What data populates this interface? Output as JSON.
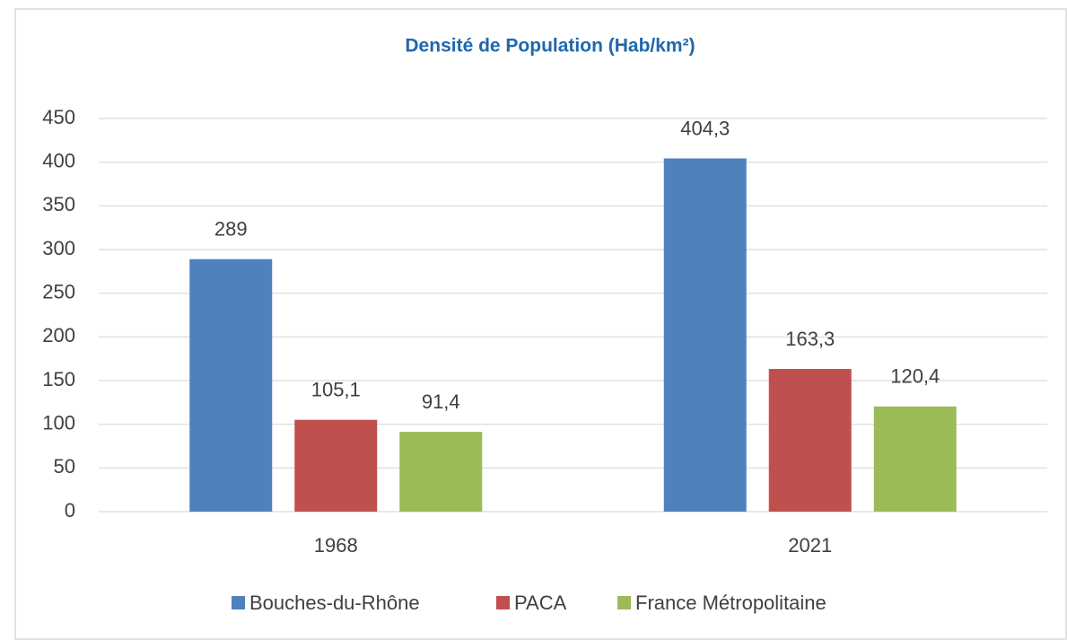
{
  "chart_data": {
    "type": "bar",
    "title": "Densité de Population (Hab/km²)",
    "categories": [
      "1968",
      "2021"
    ],
    "series": [
      {
        "name": "Bouches-du-Rhône",
        "color": "#4f81bd",
        "values": [
          289,
          404.3
        ],
        "value_labels": [
          "289",
          "404,3"
        ]
      },
      {
        "name": "PACA",
        "color": "#c0504d",
        "values": [
          105.1,
          163.3
        ],
        "value_labels": [
          "105,1",
          "163,3"
        ]
      },
      {
        "name": "France Métropolitaine",
        "color": "#9bbb59",
        "values": [
          91.4,
          120.4
        ],
        "value_labels": [
          "91,4",
          "120,4"
        ]
      }
    ],
    "ylim": [
      0,
      450
    ],
    "yticks": [
      0,
      50,
      100,
      150,
      200,
      250,
      300,
      350,
      400,
      450
    ],
    "grid": true,
    "legend": "bottom"
  }
}
